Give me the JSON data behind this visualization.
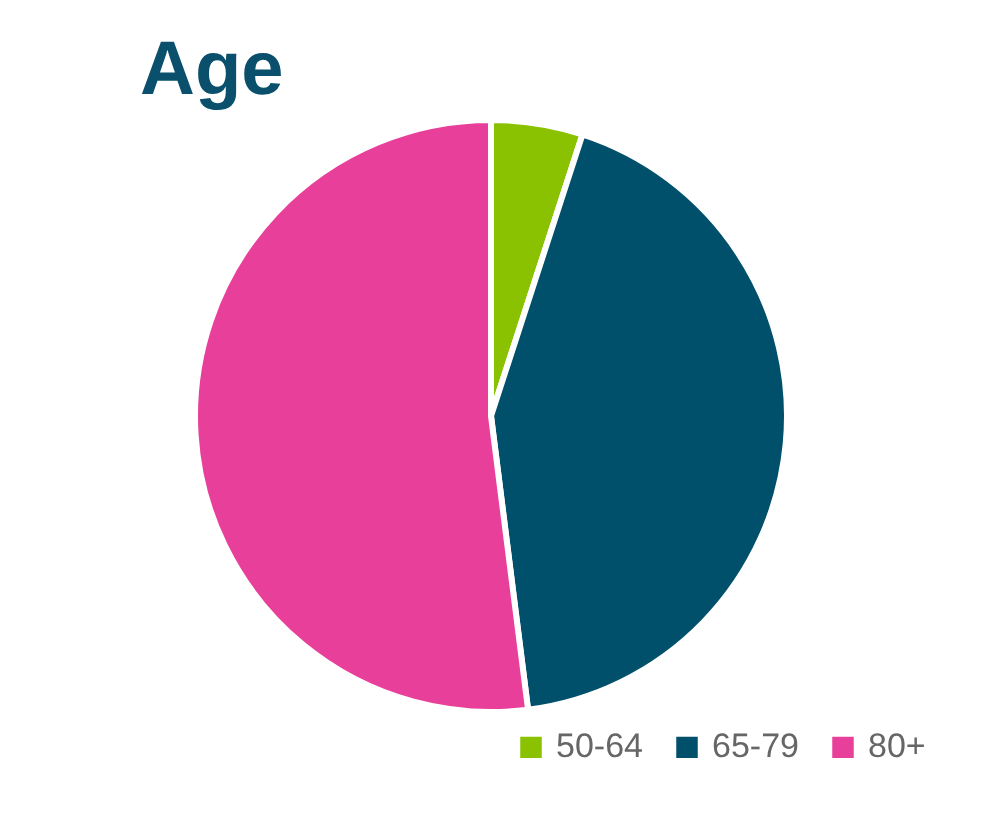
{
  "chart_data": {
    "type": "pie",
    "title": "Age",
    "categories": [
      "50-64",
      "65-79",
      "80+"
    ],
    "values": [
      5,
      43,
      52
    ],
    "colors": [
      "#8ac100",
      "#004f6b",
      "#e8409a"
    ],
    "legend": "bottom right"
  }
}
